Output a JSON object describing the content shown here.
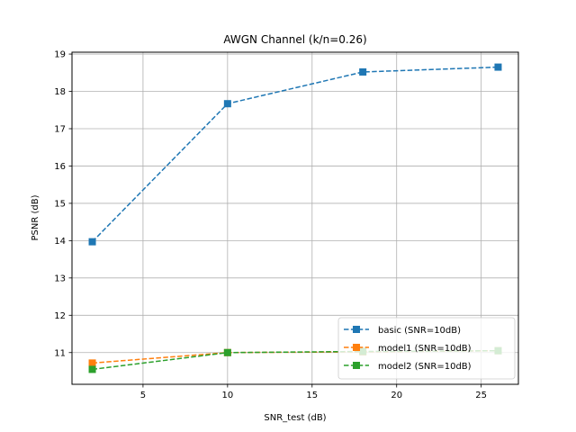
{
  "chart_data": {
    "type": "line",
    "title": "AWGN Channel (k/n=0.26)",
    "xlabel": "SNR_test (dB)",
    "ylabel": "PSNR (dB)",
    "xlim": [
      0.8,
      27.2
    ],
    "ylim": [
      10.15,
      19.05
    ],
    "xticks": [
      "5",
      "10",
      "15",
      "20",
      "25"
    ],
    "yticks": [
      "11",
      "12",
      "13",
      "14",
      "15",
      "16",
      "17",
      "18",
      "19"
    ],
    "grid": true,
    "legend_position": "lower-right",
    "x": [
      2,
      10,
      18,
      26
    ],
    "series": [
      {
        "name": "basic (SNR=10dB)",
        "values": [
          13.97,
          17.67,
          18.52,
          18.65
        ],
        "color": "#1f77b4",
        "linestyle": "dashed",
        "marker": "square"
      },
      {
        "name": "model1 (SNR=10dB)",
        "values": [
          10.72,
          11.0,
          11.02,
          11.05
        ],
        "color": "#ff7f0e",
        "linestyle": "dashed",
        "marker": "square"
      },
      {
        "name": "model2 (SNR=10dB)",
        "values": [
          10.55,
          11.0,
          11.03,
          11.05
        ],
        "color": "#2ca02c",
        "linestyle": "dashed",
        "marker": "square"
      }
    ]
  }
}
